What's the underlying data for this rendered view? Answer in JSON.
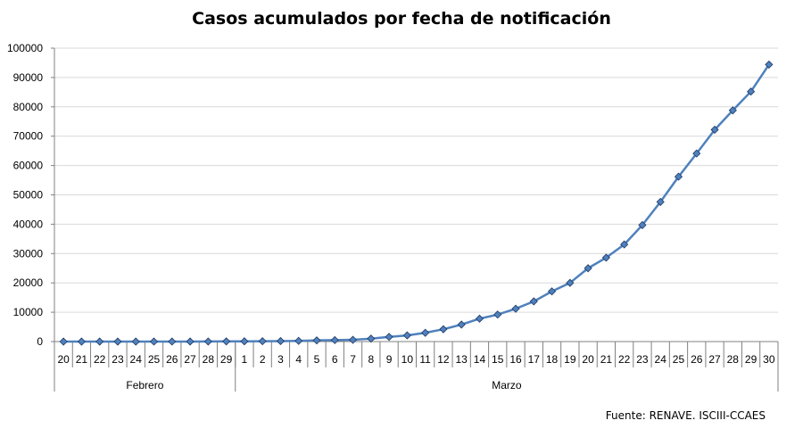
{
  "chart_data": {
    "type": "line",
    "title": "Casos acumulados por fecha de notificación",
    "xlabel": "",
    "ylabel": "",
    "ylim": [
      0,
      100000
    ],
    "y_ticks": [
      "0",
      "10000",
      "20000",
      "30000",
      "40000",
      "50000",
      "60000",
      "70000",
      "80000",
      "90000",
      "100000"
    ],
    "grid": true,
    "legend": "none",
    "categories": [
      "20",
      "21",
      "22",
      "23",
      "24",
      "25",
      "26",
      "27",
      "28",
      "29",
      "1",
      "2",
      "3",
      "4",
      "5",
      "6",
      "7",
      "8",
      "9",
      "10",
      "11",
      "12",
      "13",
      "14",
      "15",
      "16",
      "17",
      "18",
      "19",
      "20",
      "21",
      "22",
      "23",
      "24",
      "25",
      "26",
      "27",
      "28",
      "29",
      "30"
    ],
    "groups": [
      {
        "label": "Febrero",
        "count": 10
      },
      {
        "label": "Marzo",
        "count": 30
      }
    ],
    "series": [
      {
        "values": [
          0,
          0,
          0,
          0,
          0,
          2,
          2,
          10,
          30,
          60,
          90,
          120,
          170,
          230,
          400,
          500,
          600,
          1000,
          1600,
          2100,
          3000,
          4200,
          5800,
          7800,
          9200,
          11200,
          13700,
          17100,
          20000,
          25000,
          28600,
          33100,
          39700,
          47600,
          56200,
          64100,
          72200,
          78800,
          85200,
          94400
        ],
        "color": "#4F81BD",
        "marker": "diamond",
        "marker_fill": "#4F81BD",
        "marker_stroke": "#1F3864"
      }
    ]
  },
  "source_note": "Fuente: RENAVE. ISCIII-CCAES"
}
